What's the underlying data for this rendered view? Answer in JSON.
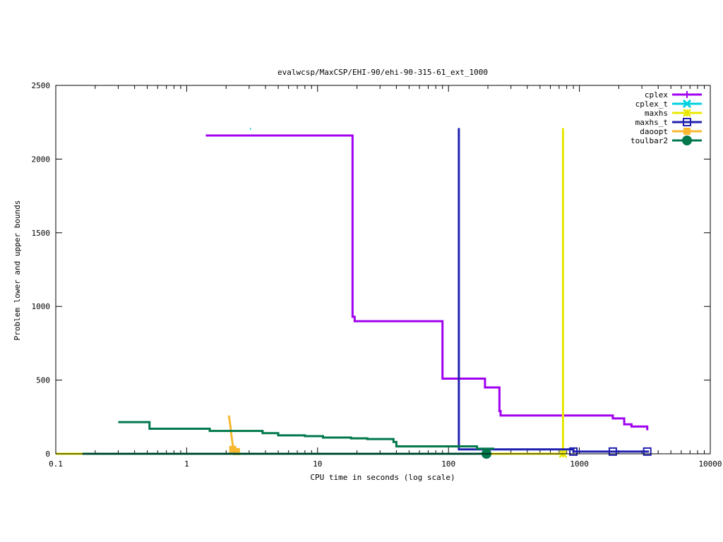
{
  "chart_data": {
    "type": "line",
    "title": "evalwcsp/MaxCSP/EHI-90/ehi-90-315-61_ext_1000",
    "xlabel": "CPU time in seconds (log scale)",
    "ylabel": "Problem lower and upper bounds",
    "x_scale": "log",
    "xlim": [
      0.1,
      10000
    ],
    "ylim": [
      0,
      2500
    ],
    "x_ticks": [
      0.1,
      1,
      10,
      100,
      1000,
      10000
    ],
    "x_tick_labels": [
      "0.1",
      "1",
      "10",
      "100",
      "1000",
      "10000"
    ],
    "y_ticks": [
      0,
      500,
      1000,
      1500,
      2000,
      2500
    ],
    "y_tick_labels": [
      "0",
      "500",
      "1000",
      "1500",
      "2000",
      "2500"
    ],
    "grid": false,
    "legend_position": "top-right",
    "series": [
      {
        "name": "cplex",
        "color": "#a000f0",
        "marker": "plus",
        "points": [
          [
            1.4,
            2160
          ],
          [
            18.5,
            2160
          ],
          [
            18.5,
            930
          ],
          [
            19.2,
            930
          ],
          [
            19.2,
            900
          ],
          [
            90,
            900
          ],
          [
            90,
            510
          ],
          [
            190,
            510
          ],
          [
            190,
            450
          ],
          [
            245,
            450
          ],
          [
            245,
            290
          ],
          [
            250,
            290
          ],
          [
            250,
            260
          ],
          [
            1800,
            260
          ],
          [
            1800,
            240
          ],
          [
            2200,
            240
          ],
          [
            2200,
            200
          ],
          [
            2500,
            200
          ],
          [
            2500,
            185
          ],
          [
            3300,
            185
          ],
          [
            3300,
            160
          ]
        ],
        "marker_points": []
      },
      {
        "name": "cplex_t",
        "color": "#00d0e0",
        "marker": "x",
        "points": [
          [
            3.05,
            2205
          ],
          [
            3.1,
            2205
          ]
        ],
        "marker_points": []
      },
      {
        "name": "maxhs",
        "color": "#e8e800",
        "marker": "star",
        "points": [
          [
            0.1,
            0
          ],
          [
            750,
            0
          ],
          [
            750,
            2210
          ]
        ],
        "marker_points": [
          [
            750,
            0
          ]
        ]
      },
      {
        "name": "maxhs_t",
        "color": "#2020b0",
        "marker": "square",
        "points": [
          [
            120,
            2210
          ],
          [
            120,
            30
          ],
          [
            900,
            30
          ],
          [
            900,
            15
          ],
          [
            3400,
            15
          ]
        ],
        "marker_points": [
          [
            900,
            15
          ],
          [
            1800,
            15
          ],
          [
            3300,
            15
          ]
        ]
      },
      {
        "name": "daoopt",
        "color": "#f8b830",
        "marker": "filled-square",
        "points": [
          [
            2.1,
            260
          ],
          [
            2.15,
            200
          ],
          [
            2.2,
            120
          ],
          [
            2.25,
            60
          ],
          [
            2.3,
            30
          ],
          [
            2.4,
            10
          ]
        ],
        "marker_points": [
          [
            2.25,
            30
          ],
          [
            2.4,
            15
          ]
        ]
      },
      {
        "name": "toulbar2",
        "color": "#00784c",
        "marker": "circle",
        "points": [
          [
            0.16,
            0
          ],
          [
            200,
            0
          ]
        ],
        "marker_points": [
          [
            195,
            0
          ]
        ]
      },
      {
        "name": "toulbar2",
        "color": "#00784c",
        "marker": "none",
        "points": [
          [
            0.3,
            215
          ],
          [
            0.52,
            215
          ],
          [
            0.52,
            170
          ],
          [
            1.5,
            170
          ],
          [
            1.5,
            155
          ],
          [
            3.8,
            155
          ],
          [
            3.8,
            140
          ],
          [
            5,
            140
          ],
          [
            5,
            125
          ],
          [
            8,
            125
          ],
          [
            8,
            120
          ],
          [
            11,
            120
          ],
          [
            11,
            110
          ],
          [
            18,
            110
          ],
          [
            18,
            105
          ],
          [
            24,
            105
          ],
          [
            24,
            100
          ],
          [
            38,
            100
          ],
          [
            38,
            80
          ],
          [
            40,
            80
          ],
          [
            40,
            50
          ],
          [
            165,
            50
          ],
          [
            165,
            35
          ],
          [
            220,
            35
          ],
          [
            220,
            30
          ]
        ],
        "marker_points": [],
        "legend": false
      }
    ]
  }
}
